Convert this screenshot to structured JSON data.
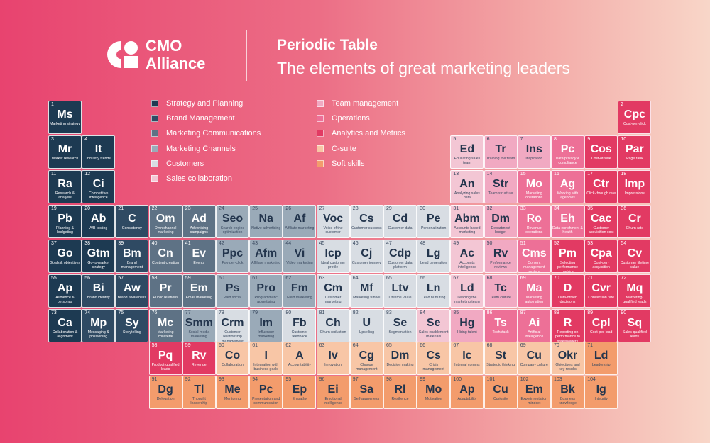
{
  "header": {
    "brand_line1": "CMO",
    "brand_line2": "Alliance",
    "title": "Periodic Table",
    "subtitle": "The elements of great marketing leaders"
  },
  "legend": {
    "column1": [
      {
        "label": "Strategy and Planning",
        "color": "#1d3a52"
      },
      {
        "label": "Brand Management",
        "color": "#2f4a63"
      },
      {
        "label": "Marketing Communications",
        "color": "#5e7285"
      },
      {
        "label": "Marketing Channels",
        "color": "#9aaab8"
      },
      {
        "label": "Customers",
        "color": "#d8dde3"
      },
      {
        "label": "Sales collaboration",
        "color": "#f3c6d4"
      }
    ],
    "column2": [
      {
        "label": "Team management",
        "color": "#f1a9c2"
      },
      {
        "label": "Operations",
        "color": "#ed7097"
      },
      {
        "label": "Analytics and Metrics",
        "color": "#e23a63"
      },
      {
        "label": "C-suite",
        "color": "#f8c6a6"
      },
      {
        "label": "Soft skills",
        "color": "#f39c6c"
      }
    ]
  },
  "elements": [
    {
      "n": "1",
      "s": "Ms",
      "name": "Marketing strategy",
      "c": "#1d3a52",
      "row": 1,
      "col": 1
    },
    {
      "n": "2",
      "s": "Cpc",
      "name": "Cost-per-click",
      "c": "#e23a63",
      "row": 1,
      "col": 18
    },
    {
      "n": "3",
      "s": "Mr",
      "name": "Market research",
      "c": "#1d3a52",
      "row": 2,
      "col": 1
    },
    {
      "n": "4",
      "s": "It",
      "name": "Industry trends",
      "c": "#1d3a52",
      "row": 2,
      "col": 2
    },
    {
      "n": "5",
      "s": "Ed",
      "name": "Educating sales team",
      "c": "#f3c6d4",
      "row": 2,
      "col": 13
    },
    {
      "n": "6",
      "s": "Tr",
      "name": "Training the team",
      "c": "#f1a9c2",
      "row": 2,
      "col": 14
    },
    {
      "n": "7",
      "s": "Ins",
      "name": "Inspiration",
      "c": "#f1a9c2",
      "row": 2,
      "col": 15
    },
    {
      "n": "8",
      "s": "Pc",
      "name": "Data privacy & compliance",
      "c": "#ed7097",
      "row": 2,
      "col": 16
    },
    {
      "n": "9",
      "s": "Cos",
      "name": "Cost-of-sale",
      "c": "#e23a63",
      "row": 2,
      "col": 17
    },
    {
      "n": "10",
      "s": "Par",
      "name": "Page rank",
      "c": "#e23a63",
      "row": 2,
      "col": 18
    },
    {
      "n": "11",
      "s": "Ra",
      "name": "Research & analysis",
      "c": "#1d3a52",
      "row": 3,
      "col": 1
    },
    {
      "n": "12",
      "s": "Ci",
      "name": "Competitive intelligence",
      "c": "#1d3a52",
      "row": 3,
      "col": 2
    },
    {
      "n": "13",
      "s": "An",
      "name": "Analyzing sales data",
      "c": "#f3c6d4",
      "row": 3,
      "col": 13
    },
    {
      "n": "14",
      "s": "Str",
      "name": "Team structure",
      "c": "#f1a9c2",
      "row": 3,
      "col": 14
    },
    {
      "n": "15",
      "s": "Mo",
      "name": "Marketing operations",
      "c": "#ed7097",
      "row": 3,
      "col": 15
    },
    {
      "n": "16",
      "s": "Ag",
      "name": "Working with agencies",
      "c": "#ed7097",
      "row": 3,
      "col": 16
    },
    {
      "n": "17",
      "s": "Ctr",
      "name": "Click-through rate",
      "c": "#e23a63",
      "row": 3,
      "col": 17
    },
    {
      "n": "18",
      "s": "Imp",
      "name": "Impressions",
      "c": "#e23a63",
      "row": 3,
      "col": 18
    },
    {
      "n": "19",
      "s": "Pb",
      "name": "Planning & budgeting",
      "c": "#1d3a52",
      "row": 4,
      "col": 1
    },
    {
      "n": "20",
      "s": "Ab",
      "name": "A/B testing",
      "c": "#1d3a52",
      "row": 4,
      "col": 2
    },
    {
      "n": "21",
      "s": "C",
      "name": "Consistency",
      "c": "#2f4a63",
      "row": 4,
      "col": 3
    },
    {
      "n": "22",
      "s": "Om",
      "name": "Omnichannel marketing",
      "c": "#5e7285",
      "row": 4,
      "col": 4
    },
    {
      "n": "23",
      "s": "Ad",
      "name": "Advertising campaigns",
      "c": "#5e7285",
      "row": 4,
      "col": 5
    },
    {
      "n": "24",
      "s": "Seo",
      "name": "Search engine optimization",
      "c": "#9aaab8",
      "row": 4,
      "col": 6
    },
    {
      "n": "25",
      "s": "Na",
      "name": "Native advertising",
      "c": "#9aaab8",
      "row": 4,
      "col": 7
    },
    {
      "n": "26",
      "s": "Af",
      "name": "Affiliate marketing",
      "c": "#9aaab8",
      "row": 4,
      "col": 8
    },
    {
      "n": "27",
      "s": "Voc",
      "name": "Voice of the customer",
      "c": "#d8dde3",
      "row": 4,
      "col": 9
    },
    {
      "n": "28",
      "s": "Cs",
      "name": "Customer success",
      "c": "#d8dde3",
      "row": 4,
      "col": 10
    },
    {
      "n": "29",
      "s": "Cd",
      "name": "Customer data",
      "c": "#d8dde3",
      "row": 4,
      "col": 11
    },
    {
      "n": "30",
      "s": "Pe",
      "name": "Personalization",
      "c": "#d8dde3",
      "row": 4,
      "col": 12
    },
    {
      "n": "31",
      "s": "Abm",
      "name": "Accounts-based marketing",
      "c": "#f3c6d4",
      "row": 4,
      "col": 13
    },
    {
      "n": "32",
      "s": "Dm",
      "name": "Department budget",
      "c": "#f1a9c2",
      "row": 4,
      "col": 14
    },
    {
      "n": "33",
      "s": "Ro",
      "name": "Revenue operations",
      "c": "#ed7097",
      "row": 4,
      "col": 15
    },
    {
      "n": "34",
      "s": "Eh",
      "name": "Data enrichment & health",
      "c": "#ed7097",
      "row": 4,
      "col": 16
    },
    {
      "n": "35",
      "s": "Cac",
      "name": "Customer acquisition cost",
      "c": "#e23a63",
      "row": 4,
      "col": 17
    },
    {
      "n": "36",
      "s": "Cr",
      "name": "Churn rate",
      "c": "#e23a63",
      "row": 4,
      "col": 18
    },
    {
      "n": "37",
      "s": "Go",
      "name": "Goals & objectives",
      "c": "#1d3a52",
      "row": 5,
      "col": 1
    },
    {
      "n": "38",
      "s": "Gtm",
      "name": "Go-to-market strategy",
      "c": "#1d3a52",
      "row": 5,
      "col": 2
    },
    {
      "n": "39",
      "s": "Bm",
      "name": "Brand management",
      "c": "#2f4a63",
      "row": 5,
      "col": 3
    },
    {
      "n": "40",
      "s": "Cn",
      "name": "Content creation",
      "c": "#5e7285",
      "row": 5,
      "col": 4
    },
    {
      "n": "41",
      "s": "Ev",
      "name": "Events",
      "c": "#5e7285",
      "row": 5,
      "col": 5
    },
    {
      "n": "42",
      "s": "Ppc",
      "name": "Pay-per-click",
      "c": "#9aaab8",
      "row": 5,
      "col": 6
    },
    {
      "n": "43",
      "s": "Afm",
      "name": "Affiliate marketing",
      "c": "#9aaab8",
      "row": 5,
      "col": 7
    },
    {
      "n": "44",
      "s": "Vi",
      "name": "Video marketing",
      "c": "#9aaab8",
      "row": 5,
      "col": 8
    },
    {
      "n": "45",
      "s": "Icp",
      "name": "Ideal customer profile",
      "c": "#d8dde3",
      "row": 5,
      "col": 9
    },
    {
      "n": "46",
      "s": "Cj",
      "name": "Customer journey",
      "c": "#d8dde3",
      "row": 5,
      "col": 10
    },
    {
      "n": "47",
      "s": "Cdp",
      "name": "Customer data platform",
      "c": "#d8dde3",
      "row": 5,
      "col": 11
    },
    {
      "n": "48",
      "s": "Lg",
      "name": "Lead generation",
      "c": "#d8dde3",
      "row": 5,
      "col": 12
    },
    {
      "n": "49",
      "s": "Ac",
      "name": "Accounts intelligence",
      "c": "#f3c6d4",
      "row": 5,
      "col": 13
    },
    {
      "n": "50",
      "s": "Rv",
      "name": "Performance reviews",
      "c": "#f1a9c2",
      "row": 5,
      "col": 14
    },
    {
      "n": "51",
      "s": "Cms",
      "name": "Content management system",
      "c": "#ed7097",
      "row": 5,
      "col": 15
    },
    {
      "n": "52",
      "s": "Pm",
      "name": "Selecting performance metrics",
      "c": "#e23a63",
      "row": 5,
      "col": 16
    },
    {
      "n": "53",
      "s": "Cpa",
      "name": "Cost-per-acquisition",
      "c": "#e23a63",
      "row": 5,
      "col": 17
    },
    {
      "n": "54",
      "s": "Cv",
      "name": "Customer lifetime value",
      "c": "#e23a63",
      "row": 5,
      "col": 18
    },
    {
      "n": "55",
      "s": "Ap",
      "name": "Audience & personas",
      "c": "#1d3a52",
      "row": 6,
      "col": 1
    },
    {
      "n": "56",
      "s": "Bi",
      "name": "Brand identity",
      "c": "#2f4a63",
      "row": 6,
      "col": 2
    },
    {
      "n": "57",
      "s": "Aw",
      "name": "Brand awareness",
      "c": "#2f4a63",
      "row": 6,
      "col": 3
    },
    {
      "n": "58",
      "s": "Pr",
      "name": "Public relations",
      "c": "#5e7285",
      "row": 6,
      "col": 4
    },
    {
      "n": "59",
      "s": "Em",
      "name": "Email marketing",
      "c": "#5e7285",
      "row": 6,
      "col": 5
    },
    {
      "n": "60",
      "s": "Ps",
      "name": "Paid social",
      "c": "#9aaab8",
      "row": 6,
      "col": 6
    },
    {
      "n": "61",
      "s": "Pro",
      "name": "Programmatic advertising",
      "c": "#9aaab8",
      "row": 6,
      "col": 7
    },
    {
      "n": "62",
      "s": "Fm",
      "name": "Field marketing",
      "c": "#9aaab8",
      "row": 6,
      "col": 8
    },
    {
      "n": "63",
      "s": "Cm",
      "name": "Customer marketing",
      "c": "#d8dde3",
      "row": 6,
      "col": 9
    },
    {
      "n": "64",
      "s": "Mf",
      "name": "Marketing funnel",
      "c": "#d8dde3",
      "row": 6,
      "col": 10
    },
    {
      "n": "65",
      "s": "Ltv",
      "name": "Lifetime value",
      "c": "#d8dde3",
      "row": 6,
      "col": 11
    },
    {
      "n": "66",
      "s": "Ln",
      "name": "Lead nurturing",
      "c": "#d8dde3",
      "row": 6,
      "col": 12
    },
    {
      "n": "67",
      "s": "Ld",
      "name": "Leading the marketing team",
      "c": "#f3c6d4",
      "row": 6,
      "col": 13
    },
    {
      "n": "68",
      "s": "Tc",
      "name": "Team culture",
      "c": "#f1a9c2",
      "row": 6,
      "col": 14
    },
    {
      "n": "69",
      "s": "Ma",
      "name": "Marketing automation",
      "c": "#ed7097",
      "row": 6,
      "col": 15
    },
    {
      "n": "70",
      "s": "D",
      "name": "Data-driven decisions",
      "c": "#e23a63",
      "row": 6,
      "col": 16
    },
    {
      "n": "71",
      "s": "Cvr",
      "name": "Conversion rate",
      "c": "#e23a63",
      "row": 6,
      "col": 17
    },
    {
      "n": "72",
      "s": "Mq",
      "name": "Marketing-qualified leads",
      "c": "#e23a63",
      "row": 6,
      "col": 18
    },
    {
      "n": "73",
      "s": "Ca",
      "name": "Collaboration & alignment",
      "c": "#1d3a52",
      "row": 7,
      "col": 1
    },
    {
      "n": "74",
      "s": "Mp",
      "name": "Messaging & positioning",
      "c": "#2f4a63",
      "row": 7,
      "col": 2
    },
    {
      "n": "75",
      "s": "Sy",
      "name": "Storytelling",
      "c": "#2f4a63",
      "row": 7,
      "col": 3
    },
    {
      "n": "76",
      "s": "Mc",
      "name": "Marketing collateral",
      "c": "#5e7285",
      "row": 7,
      "col": 4
    },
    {
      "n": "77",
      "s": "Smm",
      "name": "Social media marketing",
      "c": "#9aaab8",
      "row": 7,
      "col": 5
    },
    {
      "n": "78",
      "s": "Crm",
      "name": "Customer relationship management",
      "c": "#d8dde3",
      "row": 7,
      "col": 6
    },
    {
      "n": "79",
      "s": "Im",
      "name": "Influencer marketing",
      "c": "#9aaab8",
      "row": 7,
      "col": 7
    },
    {
      "n": "80",
      "s": "Fb",
      "name": "Customer feedback",
      "c": "#d8dde3",
      "row": 7,
      "col": 8
    },
    {
      "n": "81",
      "s": "Ch",
      "name": "Churn reduction",
      "c": "#d8dde3",
      "row": 7,
      "col": 9
    },
    {
      "n": "82",
      "s": "U",
      "name": "Upselling",
      "c": "#d8dde3",
      "row": 7,
      "col": 10
    },
    {
      "n": "83",
      "s": "Se",
      "name": "Segmentation",
      "c": "#d8dde3",
      "row": 7,
      "col": 11
    },
    {
      "n": "84",
      "s": "Se",
      "name": "Sales enablement materials",
      "c": "#f3c6d4",
      "row": 7,
      "col": 12
    },
    {
      "n": "85",
      "s": "Hg",
      "name": "Hiring talent",
      "c": "#f1a9c2",
      "row": 7,
      "col": 13
    },
    {
      "n": "86",
      "s": "Ts",
      "name": "Techstack",
      "c": "#ed7097",
      "row": 7,
      "col": 14
    },
    {
      "n": "87",
      "s": "Ai",
      "name": "Artificial intelligence",
      "c": "#ed7097",
      "row": 7,
      "col": 15
    },
    {
      "n": "88",
      "s": "R",
      "name": "Reporting on performance to stakeholders",
      "c": "#e23a63",
      "row": 7,
      "col": 16
    },
    {
      "n": "89",
      "s": "Cpl",
      "name": "Cost-per-lead",
      "c": "#e23a63",
      "row": 7,
      "col": 17
    },
    {
      "n": "90",
      "s": "Sq",
      "name": "Sales-qualified leads",
      "c": "#e23a63",
      "row": 7,
      "col": 18
    },
    {
      "n": "58",
      "s": "Pq",
      "name": "Product-qualified leads",
      "c": "#e23a63",
      "row": 8,
      "col": 4
    },
    {
      "n": "59",
      "s": "Rv",
      "name": "Revenue",
      "c": "#e23a63",
      "row": 8,
      "col": 5
    },
    {
      "n": "60",
      "s": "Co",
      "name": "Collaboration",
      "c": "#f8c6a6",
      "row": 8,
      "col": 6
    },
    {
      "n": "61",
      "s": "I",
      "name": "Integration with business goals",
      "c": "#f8c6a6",
      "row": 8,
      "col": 7
    },
    {
      "n": "62",
      "s": "A",
      "name": "Accountability",
      "c": "#f8c6a6",
      "row": 8,
      "col": 8
    },
    {
      "n": "63",
      "s": "Iv",
      "name": "Innovation",
      "c": "#f8c6a6",
      "row": 8,
      "col": 9
    },
    {
      "n": "64",
      "s": "Cg",
      "name": "Change management",
      "c": "#f8c6a6",
      "row": 8,
      "col": 10
    },
    {
      "n": "65",
      "s": "Dm",
      "name": "Decision making",
      "c": "#f8c6a6",
      "row": 8,
      "col": 11
    },
    {
      "n": "66",
      "s": "Cs",
      "name": "Crisis management",
      "c": "#f8c6a6",
      "row": 8,
      "col": 12
    },
    {
      "n": "67",
      "s": "Ic",
      "name": "Internal comms",
      "c": "#f8c6a6",
      "row": 8,
      "col": 13
    },
    {
      "n": "68",
      "s": "St",
      "name": "Strategic thinking",
      "c": "#f8c6a6",
      "row": 8,
      "col": 14
    },
    {
      "n": "69",
      "s": "Cu",
      "name": "Company culture",
      "c": "#f8c6a6",
      "row": 8,
      "col": 15
    },
    {
      "n": "70",
      "s": "Okr",
      "name": "Objectives and key results",
      "c": "#f8c6a6",
      "row": 8,
      "col": 16
    },
    {
      "n": "71",
      "s": "Ld",
      "name": "Leadership",
      "c": "#f39c6c",
      "row": 8,
      "col": 17
    },
    {
      "n": "91",
      "s": "Dg",
      "name": "Delegation",
      "c": "#f39c6c",
      "row": 9,
      "col": 4
    },
    {
      "n": "92",
      "s": "Tl",
      "name": "Thought leadership",
      "c": "#f39c6c",
      "row": 9,
      "col": 5
    },
    {
      "n": "93",
      "s": "Me",
      "name": "Mentoring",
      "c": "#f39c6c",
      "row": 9,
      "col": 6
    },
    {
      "n": "94",
      "s": "Pc",
      "name": "Presentation and communication",
      "c": "#f39c6c",
      "row": 9,
      "col": 7
    },
    {
      "n": "95",
      "s": "Ep",
      "name": "Empathy",
      "c": "#f39c6c",
      "row": 9,
      "col": 8
    },
    {
      "n": "96",
      "s": "Ei",
      "name": "Emotional intelligence",
      "c": "#f39c6c",
      "row": 9,
      "col": 9
    },
    {
      "n": "97",
      "s": "Sa",
      "name": "Self-awareness",
      "c": "#f39c6c",
      "row": 9,
      "col": 10
    },
    {
      "n": "98",
      "s": "Rl",
      "name": "Resilience",
      "c": "#f39c6c",
      "row": 9,
      "col": 11
    },
    {
      "n": "99",
      "s": "Mo",
      "name": "Motivation",
      "c": "#f39c6c",
      "row": 9,
      "col": 12
    },
    {
      "n": "100",
      "s": "Ap",
      "name": "Adaptability",
      "c": "#f39c6c",
      "row": 9,
      "col": 13
    },
    {
      "n": "101",
      "s": "Cu",
      "name": "Curiosity",
      "c": "#f39c6c",
      "row": 9,
      "col": 14
    },
    {
      "n": "102",
      "s": "Em",
      "name": "Experimentation mindset",
      "c": "#f39c6c",
      "row": 9,
      "col": 15
    },
    {
      "n": "103",
      "s": "Bk",
      "name": "Business knowledge",
      "c": "#f39c6c",
      "row": 9,
      "col": 16
    },
    {
      "n": "104",
      "s": "Ig",
      "name": "Integrity",
      "c": "#f39c6c",
      "row": 9,
      "col": 17
    }
  ]
}
